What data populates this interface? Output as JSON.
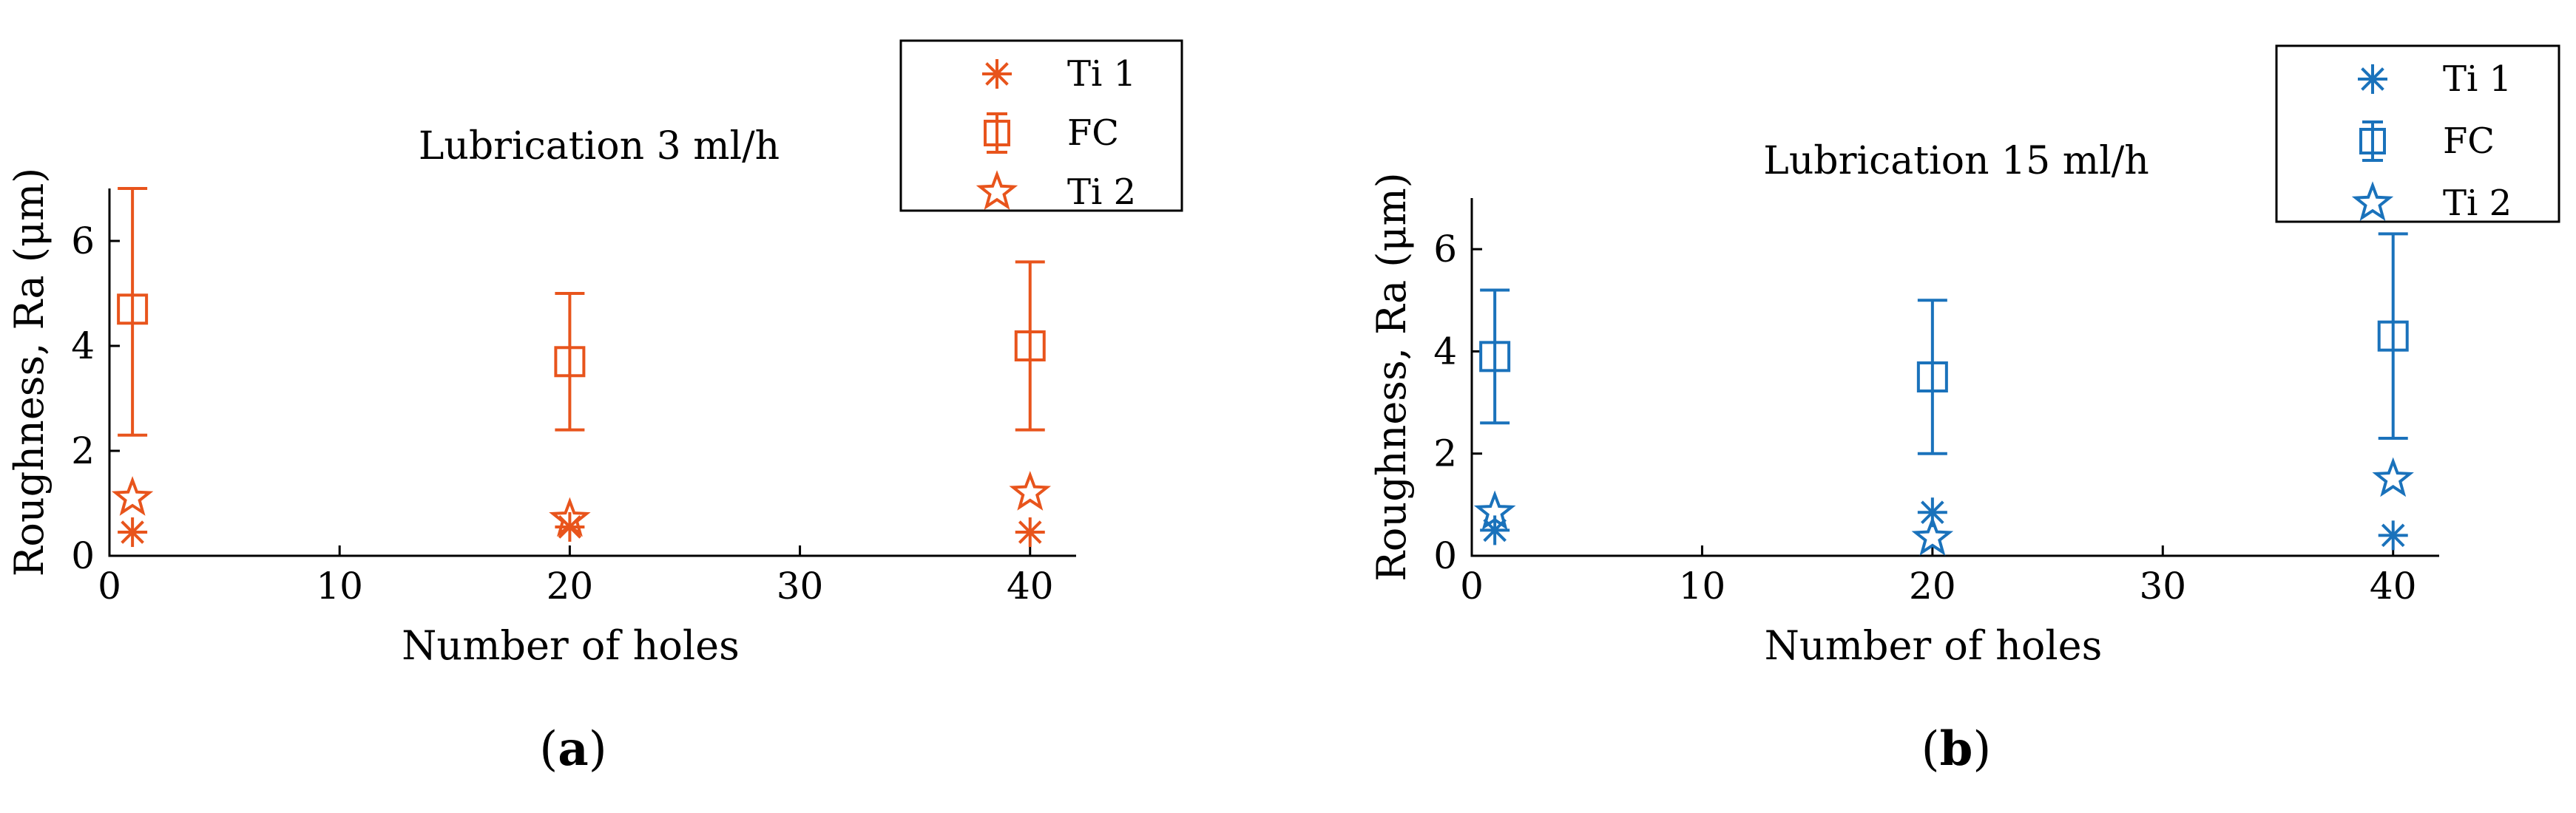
{
  "chart_data": [
    {
      "type": "scatter",
      "panel_label": "a",
      "title": "Lubrication 3 ml/h",
      "xlabel": "Number of holes",
      "ylabel": "Roughness, Ra (μm)",
      "xlim": [
        0,
        42
      ],
      "ylim": [
        0,
        7
      ],
      "xticks": [
        0,
        10,
        20,
        30,
        40
      ],
      "yticks": [
        0,
        2,
        4,
        6
      ],
      "color": "#e8541c",
      "legend_position": "top-right, outside axes",
      "grid": false,
      "series": [
        {
          "name": "Ti 1",
          "marker": "asterisk",
          "x": [
            1,
            20,
            40
          ],
          "y": [
            0.45,
            0.55,
            0.45
          ]
        },
        {
          "name": "FC",
          "marker": "square-errorbar",
          "x": [
            1,
            20,
            40
          ],
          "y": [
            4.7,
            3.7,
            4.0
          ],
          "err_low": [
            2.3,
            2.4,
            2.4
          ],
          "err_high": [
            7.0,
            5.0,
            5.6
          ]
        },
        {
          "name": "Ti 2",
          "marker": "pentagram",
          "x": [
            1,
            20,
            40
          ],
          "y": [
            1.1,
            0.7,
            1.2
          ]
        }
      ]
    },
    {
      "type": "scatter",
      "panel_label": "b",
      "title": "Lubrication 15 ml/h",
      "xlabel": "Number of holes",
      "ylabel": "Roughness, Ra (μm)",
      "xlim": [
        0,
        42
      ],
      "ylim": [
        0,
        7
      ],
      "xticks": [
        0,
        10,
        20,
        30,
        40
      ],
      "yticks": [
        0,
        2,
        4,
        6
      ],
      "color": "#1a72bb",
      "legend_position": "top-right, outside axes",
      "grid": false,
      "series": [
        {
          "name": "Ti 1",
          "marker": "asterisk",
          "x": [
            1,
            20,
            40
          ],
          "y": [
            0.5,
            0.85,
            0.4
          ]
        },
        {
          "name": "FC",
          "marker": "square-errorbar",
          "x": [
            1,
            20,
            40
          ],
          "y": [
            3.9,
            3.5,
            4.3
          ],
          "err_low": [
            2.6,
            2.0,
            2.3
          ],
          "err_high": [
            5.2,
            5.0,
            6.3
          ]
        },
        {
          "name": "Ti 2",
          "marker": "pentagram",
          "x": [
            1,
            20,
            40
          ],
          "y": [
            0.85,
            0.35,
            1.5
          ]
        }
      ]
    }
  ]
}
